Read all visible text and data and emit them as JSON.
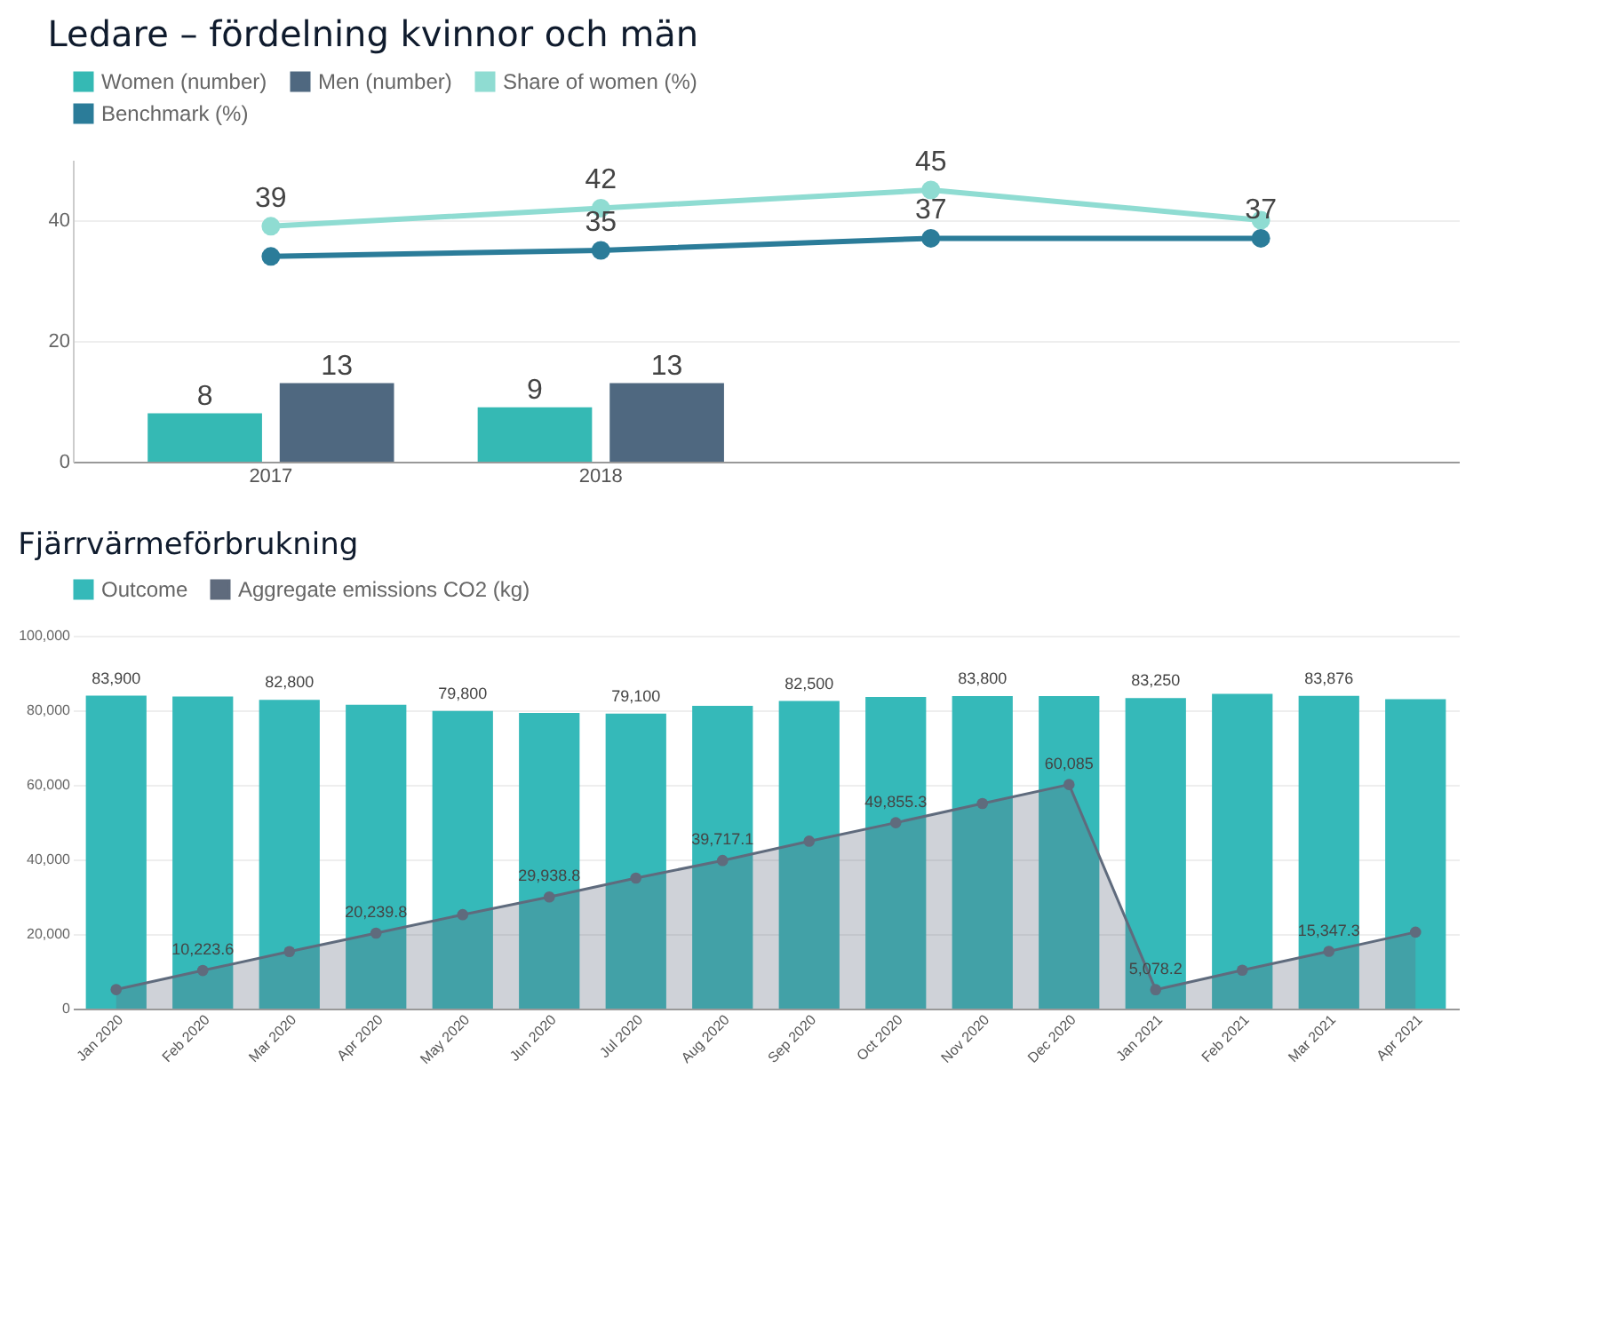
{
  "chart_data": [
    {
      "type": "bar",
      "title": "Ledare – fördelning kvinnor och män",
      "categories": [
        "2017",
        "2018",
        null,
        null
      ],
      "series": [
        {
          "name": "Women (number)",
          "color": "#35b9b4",
          "values": [
            8,
            9,
            null,
            null
          ],
          "value_labels": [
            "8",
            "9",
            null,
            null
          ]
        },
        {
          "name": "Men (number)",
          "color": "#4f6880",
          "values": [
            13,
            13,
            null,
            null
          ],
          "value_labels": [
            "13",
            "13",
            null,
            null
          ]
        },
        {
          "name": "Share of women (%)",
          "type": "line",
          "color": "#8fdcd2",
          "values": [
            39,
            42,
            45,
            40
          ],
          "value_labels": [
            "39",
            "42",
            "45",
            null
          ]
        },
        {
          "name": "Benchmark (%)",
          "type": "line",
          "color": "#2b7c99",
          "values": [
            34,
            35,
            37,
            37
          ],
          "value_labels": [
            null,
            "35",
            "37",
            "37"
          ]
        }
      ],
      "ylim": [
        0,
        50
      ],
      "yticks": [
        0,
        20,
        40
      ],
      "grid": "y",
      "legend": "top",
      "marker": "circle",
      "line_style": "solid"
    },
    {
      "type": "bar",
      "title": "Fjärrvärmeförbrukning",
      "categories": [
        "Jan 2020",
        "Feb 2020",
        "Mar 2020",
        "Apr 2020",
        "May 2020",
        "Jun 2020",
        "Jul 2020",
        "Aug 2020",
        "Sep 2020",
        "Oct 2020",
        "Nov 2020",
        "Dec 2020",
        "Jan 2021",
        "Feb 2021",
        "Mar 2021",
        "Apr 2021"
      ],
      "series": [
        {
          "name": "Outcome",
          "color": "#35b9b9",
          "values": [
            83900,
            83700,
            82800,
            81500,
            79800,
            79300,
            79100,
            81200,
            82500,
            83600,
            83800,
            83800,
            83250,
            84400,
            83876,
            83000
          ],
          "value_labels": [
            "83,900",
            null,
            "82,800",
            null,
            "79,800",
            null,
            "79,100",
            null,
            "82,500",
            null,
            "83,800",
            null,
            "83,250",
            null,
            "83,876",
            null
          ]
        },
        {
          "name": "Aggregate emissions CO2 (kg)",
          "type": "area",
          "color": "#5f6b7d",
          "values": [
            5100,
            10223.6,
            15300,
            20239.8,
            25200,
            29938.8,
            35000,
            39717.1,
            44900,
            49855.3,
            55000,
            60085,
            5078.2,
            10300,
            15347.3,
            20500
          ],
          "value_labels": [
            null,
            "10,223.6",
            null,
            "20,239.8",
            null,
            "29,938.8",
            null,
            "39,717.1",
            null,
            "49,855.3",
            null,
            "60,085",
            "5,078.2",
            null,
            "15,347.3",
            null
          ]
        }
      ],
      "ylim": [
        0,
        100000
      ],
      "yticks": [
        0,
        {
          "value": 20000,
          "label": "20,000"
        },
        {
          "value": 40000,
          "label": "40,000"
        },
        {
          "value": 60000,
          "label": "60,000"
        },
        {
          "value": 80000,
          "label": "80,000"
        },
        {
          "value": 100000,
          "label": "100,000"
        }
      ],
      "grid": "y",
      "legend": "top left",
      "marker": "circle",
      "line_style": "solid"
    }
  ]
}
